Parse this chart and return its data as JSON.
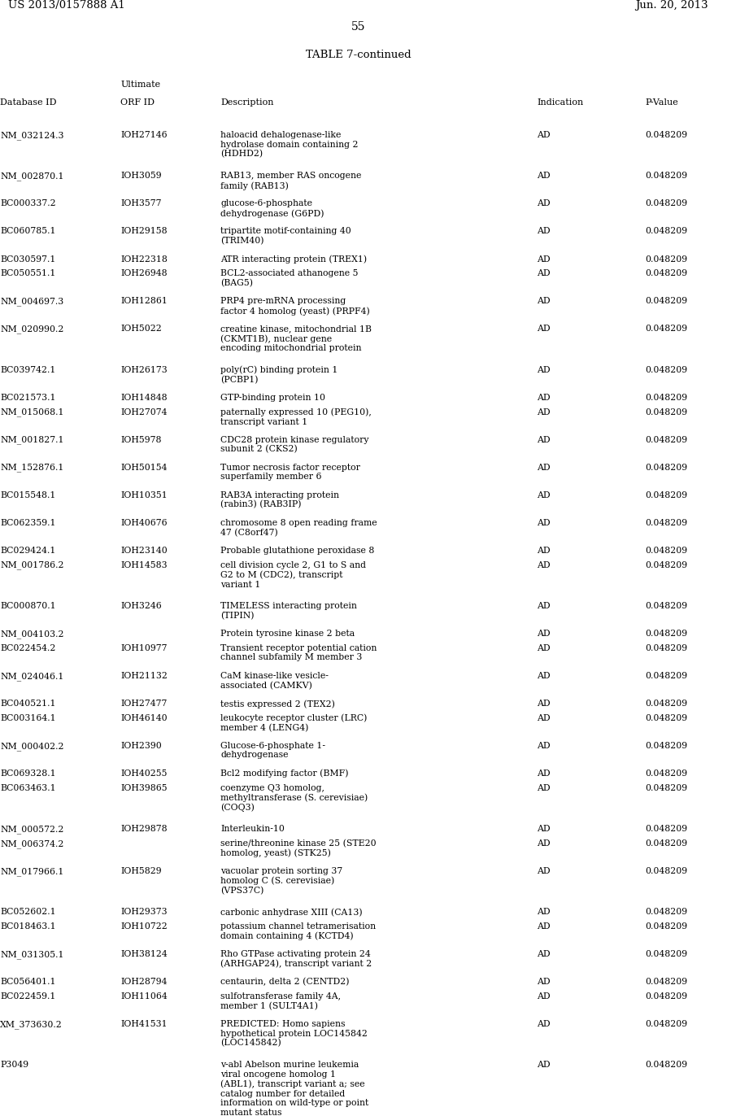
{
  "header_left": "US 2013/0157888 A1",
  "header_right": "Jun. 20, 2013",
  "page_number": "55",
  "table_title": "TABLE 7-continued",
  "rows": [
    [
      "NM_032124.3",
      "IOH27146",
      "haloacid dehalogenase-like\nhydrolase domain containing 2\n(HDHD2)",
      "AD",
      "0.048209"
    ],
    [
      "NM_002870.1",
      "IOH3059",
      "RAB13, member RAS oncogene\nfamily (RAB13)",
      "AD",
      "0.048209"
    ],
    [
      "BC000337.2",
      "IOH3577",
      "glucose-6-phosphate\ndehydrogenase (G6PD)",
      "AD",
      "0.048209"
    ],
    [
      "BC060785.1",
      "IOH29158",
      "tripartite motif-containing 40\n(TRIM40)",
      "AD",
      "0.048209"
    ],
    [
      "BC030597.1",
      "IOH22318",
      "ATR interacting protein (TREX1)",
      "AD",
      "0.048209"
    ],
    [
      "BC050551.1",
      "IOH26948",
      "BCL2-associated athanogene 5\n(BAG5)",
      "AD",
      "0.048209"
    ],
    [
      "NM_004697.3",
      "IOH12861",
      "PRP4 pre-mRNA processing\nfactor 4 homolog (yeast) (PRPF4)",
      "AD",
      "0.048209"
    ],
    [
      "NM_020990.2",
      "IOH5022",
      "creatine kinase, mitochondrial 1B\n(CKMT1B), nuclear gene\nencoding mitochondrial protein",
      "AD",
      "0.048209"
    ],
    [
      "BC039742.1",
      "IOH26173",
      "poly(rC) binding protein 1\n(PCBP1)",
      "AD",
      "0.048209"
    ],
    [
      "BC021573.1",
      "IOH14848",
      "GTP-binding protein 10",
      "AD",
      "0.048209"
    ],
    [
      "NM_015068.1",
      "IOH27074",
      "paternally expressed 10 (PEG10),\ntranscript variant 1",
      "AD",
      "0.048209"
    ],
    [
      "NM_001827.1",
      "IOH5978",
      "CDC28 protein kinase regulatory\nsubunit 2 (CKS2)",
      "AD",
      "0.048209"
    ],
    [
      "NM_152876.1",
      "IOH50154",
      "Tumor necrosis factor receptor\nsuperfamily member 6",
      "AD",
      "0.048209"
    ],
    [
      "BC015548.1",
      "IOH10351",
      "RAB3A interacting protein\n(rabin3) (RAB3IP)",
      "AD",
      "0.048209"
    ],
    [
      "BC062359.1",
      "IOH40676",
      "chromosome 8 open reading frame\n47 (C8orf47)",
      "AD",
      "0.048209"
    ],
    [
      "BC029424.1",
      "IOH23140",
      "Probable glutathione peroxidase 8",
      "AD",
      "0.048209"
    ],
    [
      "NM_001786.2",
      "IOH14583",
      "cell division cycle 2, G1 to S and\nG2 to M (CDC2), transcript\nvariant 1",
      "AD",
      "0.048209"
    ],
    [
      "BC000870.1",
      "IOH3246",
      "TIMELESS interacting protein\n(TIPIN)",
      "AD",
      "0.048209"
    ],
    [
      "NM_004103.2",
      "",
      "Protein tyrosine kinase 2 beta",
      "AD",
      "0.048209"
    ],
    [
      "BC022454.2",
      "IOH10977",
      "Transient receptor potential cation\nchannel subfamily M member 3",
      "AD",
      "0.048209"
    ],
    [
      "NM_024046.1",
      "IOH21132",
      "CaM kinase-like vesicle-\nassociated (CAMKV)",
      "AD",
      "0.048209"
    ],
    [
      "BC040521.1",
      "IOH27477",
      "testis expressed 2 (TEX2)",
      "AD",
      "0.048209"
    ],
    [
      "BC003164.1",
      "IOH46140",
      "leukocyte receptor cluster (LRC)\nmember 4 (LENG4)",
      "AD",
      "0.048209"
    ],
    [
      "NM_000402.2",
      "IOH2390",
      "Glucose-6-phosphate 1-\ndehydrogenase",
      "AD",
      "0.048209"
    ],
    [
      "BC069328.1",
      "IOH40255",
      "Bcl2 modifying factor (BMF)",
      "AD",
      "0.048209"
    ],
    [
      "BC063463.1",
      "IOH39865",
      "coenzyme Q3 homolog,\nmethyltransferase (S. cerevisiae)\n(COQ3)",
      "AD",
      "0.048209"
    ],
    [
      "NM_000572.2",
      "IOH29878",
      "Interleukin-10",
      "AD",
      "0.048209"
    ],
    [
      "NM_006374.2",
      "",
      "serine/threonine kinase 25 (STE20\nhomolog, yeast) (STK25)",
      "AD",
      "0.048209"
    ],
    [
      "NM_017966.1",
      "IOH5829",
      "vacuolar protein sorting 37\nhomolog C (S. cerevisiae)\n(VPS37C)",
      "AD",
      "0.048209"
    ],
    [
      "BC052602.1",
      "IOH29373",
      "carbonic anhydrase XIII (CA13)",
      "AD",
      "0.048209"
    ],
    [
      "BC018463.1",
      "IOH10722",
      "potassium channel tetramerisation\ndomain containing 4 (KCTD4)",
      "AD",
      "0.048209"
    ],
    [
      "NM_031305.1",
      "IOH38124",
      "Rho GTPase activating protein 24\n(ARHGAP24), transcript variant 2",
      "AD",
      "0.048209"
    ],
    [
      "BC056401.1",
      "IOH28794",
      "centaurin, delta 2 (CENTD2)",
      "AD",
      "0.048209"
    ],
    [
      "BC022459.1",
      "IOH11064",
      "sulfotransferase family 4A,\nmember 1 (SULT4A1)",
      "AD",
      "0.048209"
    ],
    [
      "XM_373630.2",
      "IOH41531",
      "PREDICTED: Homo sapiens\nhypothetical protein LOC145842\n(LOC145842)",
      "AD",
      "0.048209"
    ],
    [
      "P3049",
      "",
      "v-abl Abelson murine leukemia\nviral oncogene homolog 1\n(ABL1), transcript variant a; see\ncatalog number for detailed\ninformation on wild-type or point\nmutant status",
      "AD",
      "0.048209"
    ]
  ]
}
